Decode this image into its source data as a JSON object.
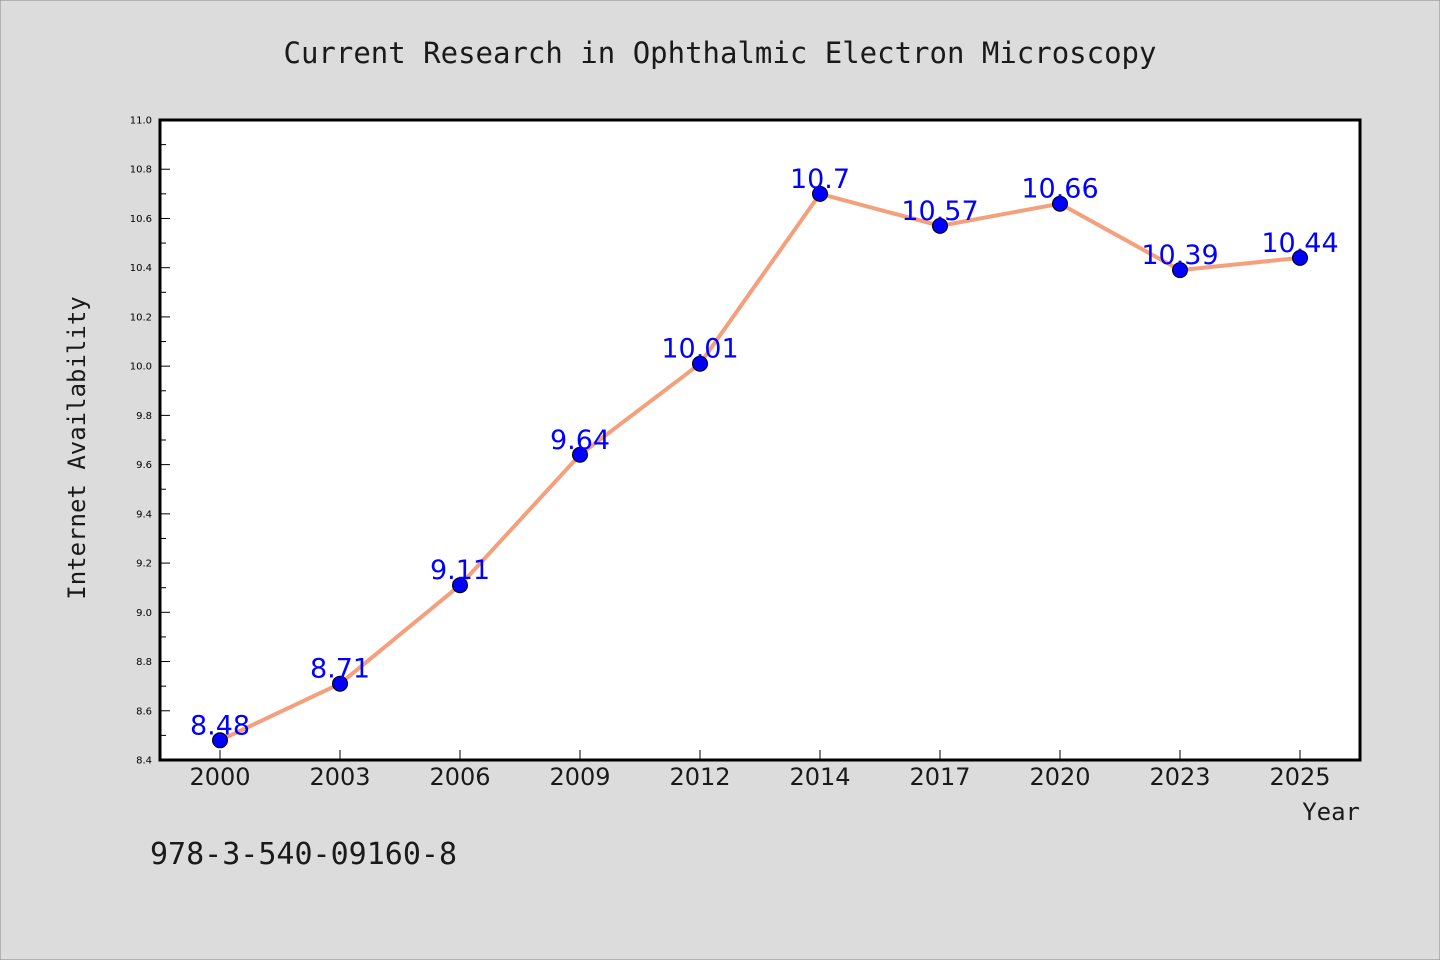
{
  "colors": {
    "background": "#dcdcdc",
    "plot_area": "#ffffff",
    "line": "#f4a07c",
    "marker": "#0000ff",
    "data_label": "#0000ff",
    "text": "#1a1a1a"
  },
  "footer": {
    "text": "978-3-540-09160-8"
  },
  "chart_data": {
    "type": "line",
    "title": "Current Research in Ophthalmic Electron Microscopy",
    "xlabel": "Year",
    "ylabel": "Internet Availability",
    "categories": [
      "2000",
      "2003",
      "2006",
      "2009",
      "2012",
      "2014",
      "2017",
      "2020",
      "2023",
      "2025"
    ],
    "series": [
      {
        "values": [
          8.48,
          8.71,
          9.11,
          9.64,
          10.01,
          10.7,
          10.57,
          10.66,
          10.39,
          10.44
        ]
      }
    ],
    "data_labels": [
      "8.48",
      "8.71",
      "9.11",
      "9.64",
      "10.01",
      "10.7",
      "10.57",
      "10.66",
      "10.39",
      "10.44"
    ],
    "ylim": [
      8.4,
      11.0
    ],
    "yticks": [
      "8.4",
      "8.6",
      "8.8",
      "9.0",
      "9.2",
      "9.4",
      "9.6",
      "9.8",
      "10.0",
      "10.2",
      "10.4",
      "10.6",
      "10.8",
      "11.0"
    ],
    "grid": false,
    "legend": "none"
  }
}
